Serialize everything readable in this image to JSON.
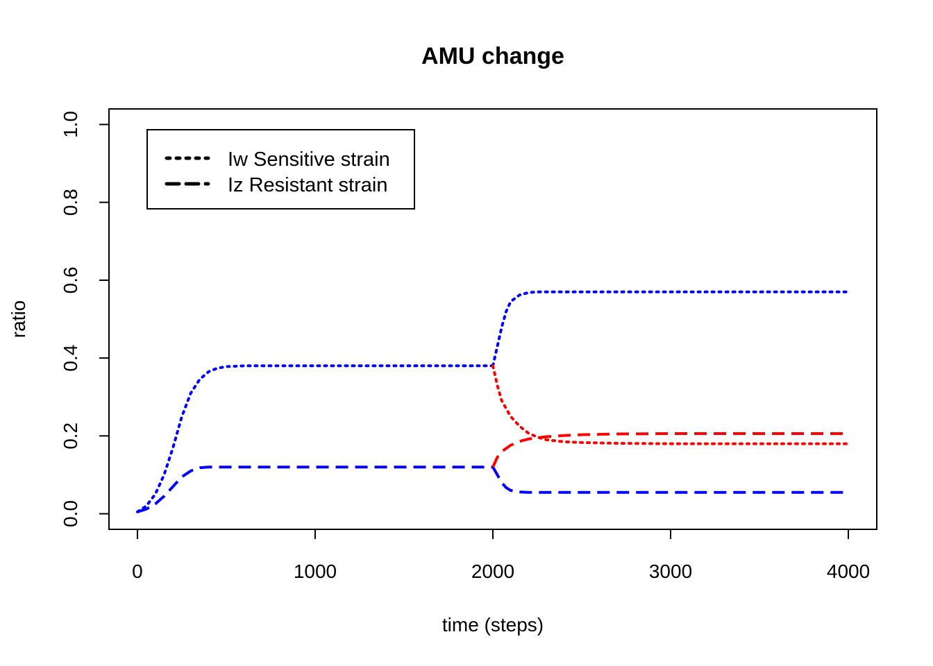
{
  "chart_data": {
    "type": "line",
    "title": "AMU change",
    "xlabel": "time (steps)",
    "ylabel": "ratio",
    "xlim": [
      -160,
      4160
    ],
    "ylim": [
      -0.04,
      1.04
    ],
    "xticks": [
      0,
      1000,
      2000,
      3000,
      4000
    ],
    "xtick_labels": [
      "0",
      "1000",
      "2000",
      "3000",
      "4000"
    ],
    "yticks": [
      0,
      0.2,
      0.4,
      0.6,
      0.8,
      1.0
    ],
    "ytick_labels": [
      "0.0",
      "0.2",
      "0.4",
      "0.6",
      "0.8",
      "1.0"
    ],
    "grid": false,
    "legend": {
      "position": "top-left",
      "entries": [
        {
          "label": "Iw Sensitive strain",
          "dash": "dotted",
          "color": "#000000"
        },
        {
          "label": "Iz Resistant strain",
          "dash": "dashed",
          "color": "#000000"
        }
      ]
    },
    "colors": {
      "blue": "#0000ff",
      "red": "#ff0000"
    },
    "series": [
      {
        "color": "#0000ff",
        "dash": "dotted",
        "x": [
          0,
          50,
          100,
          150,
          200,
          250,
          300,
          350,
          400,
          450,
          500,
          600,
          800,
          1000,
          1500,
          2000
        ],
        "y": [
          0.005,
          0.02,
          0.05,
          0.1,
          0.17,
          0.25,
          0.31,
          0.345,
          0.365,
          0.374,
          0.378,
          0.38,
          0.38,
          0.38,
          0.38,
          0.38
        ]
      },
      {
        "color": "#0000ff",
        "dash": "dashed",
        "x": [
          0,
          50,
          100,
          150,
          200,
          250,
          300,
          350,
          400,
          500,
          1000,
          1500,
          2000
        ],
        "y": [
          0.005,
          0.012,
          0.025,
          0.045,
          0.07,
          0.095,
          0.11,
          0.118,
          0.12,
          0.12,
          0.12,
          0.12,
          0.12
        ]
      },
      {
        "color": "#0000ff",
        "dash": "dotted",
        "x": [
          2000,
          2025,
          2050,
          2075,
          2100,
          2150,
          2200,
          2250,
          2300,
          2500,
          3000,
          3500,
          4000
        ],
        "y": [
          0.38,
          0.43,
          0.48,
          0.52,
          0.545,
          0.562,
          0.568,
          0.57,
          0.57,
          0.57,
          0.57,
          0.57,
          0.57
        ]
      },
      {
        "color": "#0000ff",
        "dash": "dashed",
        "x": [
          2000,
          2025,
          2050,
          2075,
          2100,
          2150,
          2200,
          2300,
          2500,
          3000,
          3500,
          4000
        ],
        "y": [
          0.12,
          0.1,
          0.08,
          0.067,
          0.06,
          0.056,
          0.055,
          0.055,
          0.055,
          0.055,
          0.055,
          0.055
        ]
      },
      {
        "color": "#ff0000",
        "dash": "dotted",
        "x": [
          2000,
          2025,
          2050,
          2100,
          2150,
          2200,
          2250,
          2300,
          2400,
          2500,
          2700,
          3000,
          3500,
          4000
        ],
        "y": [
          0.38,
          0.33,
          0.29,
          0.25,
          0.225,
          0.207,
          0.197,
          0.19,
          0.185,
          0.183,
          0.181,
          0.18,
          0.18,
          0.18
        ]
      },
      {
        "color": "#ff0000",
        "dash": "dashed",
        "x": [
          2000,
          2025,
          2050,
          2100,
          2150,
          2200,
          2300,
          2400,
          2500,
          2700,
          3000,
          3500,
          4000
        ],
        "y": [
          0.12,
          0.145,
          0.16,
          0.176,
          0.186,
          0.192,
          0.198,
          0.201,
          0.203,
          0.205,
          0.206,
          0.206,
          0.206
        ]
      }
    ]
  }
}
